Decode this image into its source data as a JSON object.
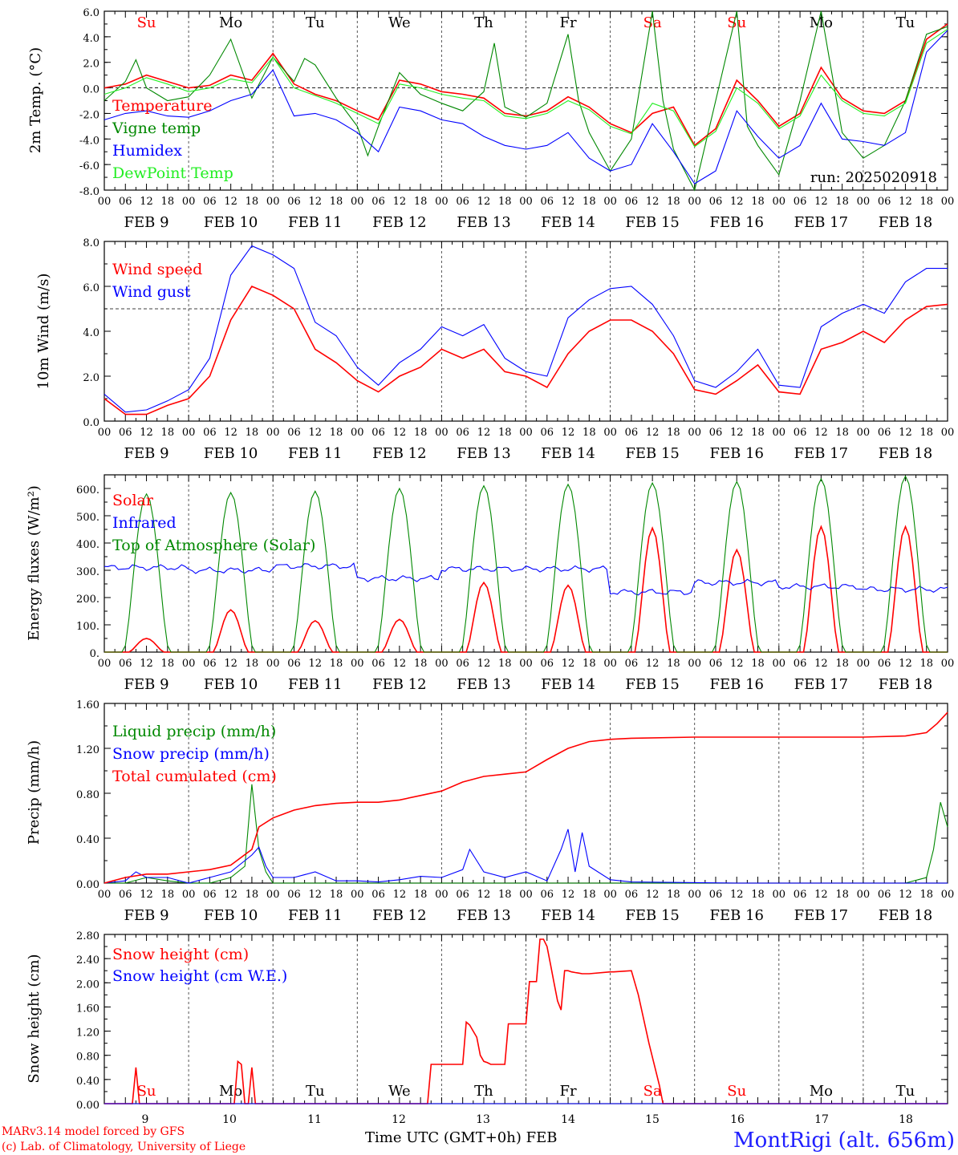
{
  "run": "run: 2025020918",
  "dates": [
    "FEB  9",
    "FEB 10",
    "FEB 11",
    "FEB 12",
    "FEB 13",
    "FEB 14",
    "FEB 15",
    "FEB 16",
    "FEB 17",
    "FEB 18"
  ],
  "hour_ticks": [
    "00",
    "06",
    "12",
    "18"
  ],
  "days": [
    {
      "label": "Su",
      "color": "#ff0000"
    },
    {
      "label": "Mo",
      "color": "#000000"
    },
    {
      "label": "Tu",
      "color": "#000000"
    },
    {
      "label": "We",
      "color": "#000000"
    },
    {
      "label": "Th",
      "color": "#000000"
    },
    {
      "label": "Fr",
      "color": "#000000"
    },
    {
      "label": "Sa",
      "color": "#ff0000"
    },
    {
      "label": "Su",
      "color": "#ff0000"
    },
    {
      "label": "Mo",
      "color": "#000000"
    },
    {
      "label": "Tu",
      "color": "#000000"
    }
  ],
  "day_numbers": [
    "9",
    "10",
    "11",
    "12",
    "13",
    "14",
    "15",
    "16",
    "17",
    "18"
  ],
  "footer": {
    "model": "MARv3.14 model forced by GFS",
    "lab": "(c) Lab. of Climatology, University of Liege",
    "xlabel": "Time UTC (GMT+0h) FEB",
    "station": "MontRigi (alt. 656m)"
  },
  "chart_data": [
    {
      "type": "line",
      "ylabel": "2m Temp. (°C)",
      "ylim": [
        -8,
        6
      ],
      "yticks": [
        "-8.0",
        "-6.0",
        "-4.0",
        "-2.0",
        "0.0",
        "2.0",
        "4.0",
        "6.0"
      ],
      "reference_line": 0,
      "x_unit": "hours since FEB 9 00 UTC",
      "series": [
        {
          "name": "Temperature",
          "color": "#ff0000",
          "x": [
            0,
            6,
            12,
            18,
            24,
            30,
            36,
            42,
            48,
            54,
            60,
            66,
            72,
            78,
            84,
            90,
            96,
            102,
            108,
            114,
            120,
            126,
            132,
            138,
            144,
            150,
            156,
            162,
            168,
            174,
            180,
            186,
            192,
            198,
            204,
            210,
            216,
            222,
            228,
            234,
            240
          ],
          "values": [
            0,
            0.3,
            1,
            0.5,
            0,
            0.2,
            1,
            0.6,
            2.7,
            0.3,
            -0.5,
            -1,
            -1.8,
            -2.5,
            0.6,
            0.3,
            -0.3,
            -0.5,
            -0.8,
            -2,
            -2.2,
            -1.8,
            -0.7,
            -1.5,
            -2.8,
            -3.5,
            -2,
            -1.5,
            -4.5,
            -3.2,
            0.6,
            -1,
            -3,
            -2,
            1.6,
            -0.8,
            -1.8,
            -2,
            -1,
            3.8,
            5
          ]
        },
        {
          "name": "Vigne temp",
          "color": "#008800",
          "x": [
            0,
            6,
            9,
            12,
            18,
            24,
            30,
            36,
            42,
            48,
            54,
            57,
            60,
            66,
            72,
            75,
            78,
            84,
            90,
            96,
            102,
            108,
            111,
            114,
            120,
            126,
            132,
            135,
            138,
            144,
            150,
            156,
            159,
            162,
            168,
            174,
            180,
            183,
            186,
            192,
            198,
            204,
            210,
            216,
            222,
            228,
            234,
            240
          ],
          "values": [
            -1,
            0.5,
            2.2,
            0,
            -1,
            -0.7,
            1,
            3.8,
            -0.8,
            2.4,
            0.5,
            2.3,
            1.8,
            -0.8,
            -3,
            -5.3,
            -3,
            1.2,
            -0.5,
            -1.2,
            -1.8,
            -0.3,
            3.5,
            -1.5,
            -2.3,
            -1.2,
            4.2,
            -1,
            -3.5,
            -6.5,
            -4,
            6.5,
            -1,
            -4.8,
            -8,
            -1,
            6.5,
            -3,
            -4.5,
            -6.8,
            -1,
            6.5,
            -3.5,
            -5.5,
            -4.5,
            -1,
            4.2,
            4.8
          ]
        },
        {
          "name": "Humidex",
          "color": "#0000ff",
          "x": [
            0,
            6,
            12,
            18,
            24,
            30,
            36,
            42,
            48,
            54,
            60,
            66,
            72,
            78,
            84,
            90,
            96,
            102,
            108,
            114,
            120,
            126,
            132,
            138,
            144,
            150,
            156,
            162,
            168,
            174,
            180,
            186,
            192,
            198,
            204,
            210,
            216,
            222,
            228,
            234,
            240
          ],
          "values": [
            -2.5,
            -2,
            -1.8,
            -2.2,
            -2.3,
            -1.8,
            -1,
            -0.5,
            1.4,
            -2.2,
            -2,
            -2.5,
            -3.5,
            -5,
            -1.5,
            -1.8,
            -2.5,
            -2.8,
            -3.8,
            -4.5,
            -4.8,
            -4.5,
            -3.5,
            -5.5,
            -6.5,
            -6,
            -2.8,
            -5,
            -7.5,
            -6.5,
            -1.8,
            -3.8,
            -5.5,
            -4.5,
            -1.2,
            -4,
            -4.2,
            -4.5,
            -3.5,
            2.8,
            4.5
          ]
        },
        {
          "name": "DewPoint Temp",
          "color": "#22ee22",
          "x": [
            0,
            6,
            12,
            18,
            24,
            30,
            36,
            42,
            48,
            54,
            60,
            66,
            72,
            78,
            84,
            90,
            96,
            102,
            108,
            114,
            120,
            126,
            132,
            138,
            144,
            150,
            156,
            162,
            168,
            174,
            180,
            186,
            192,
            198,
            204,
            210,
            216,
            222,
            228,
            234,
            240
          ],
          "values": [
            -0.5,
            0,
            0.8,
            0.3,
            -0.3,
            0,
            0.7,
            0.4,
            2.4,
            0,
            -0.6,
            -1.2,
            -2,
            -2.8,
            0.3,
            0,
            -0.5,
            -0.8,
            -1,
            -2.2,
            -2.4,
            -2,
            -1,
            -1.7,
            -3,
            -3.6,
            -1.2,
            -1.8,
            -4.6,
            -3.4,
            0,
            -1.2,
            -3.2,
            -2.2,
            1,
            -1,
            -2,
            -2.2,
            -1.2,
            3.5,
            4.6
          ]
        }
      ]
    },
    {
      "type": "line",
      "ylabel": "10m Wind (m/s)",
      "ylim": [
        0,
        8
      ],
      "yticks": [
        "0.0",
        "2.0",
        "4.0",
        "6.0",
        "8.0"
      ],
      "reference_line": 5,
      "x_unit": "hours since FEB 9 00 UTC",
      "series": [
        {
          "name": "Wind speed",
          "color": "#ff0000",
          "x": [
            0,
            6,
            12,
            18,
            24,
            30,
            36,
            42,
            48,
            54,
            60,
            66,
            72,
            78,
            84,
            90,
            96,
            102,
            108,
            114,
            120,
            126,
            132,
            138,
            144,
            150,
            156,
            162,
            168,
            174,
            180,
            186,
            192,
            198,
            204,
            210,
            216,
            222,
            228,
            234,
            240
          ],
          "values": [
            1,
            0.3,
            0.3,
            0.7,
            1,
            2,
            4.5,
            6,
            5.6,
            5,
            3.2,
            2.6,
            1.8,
            1.3,
            2,
            2.4,
            3.2,
            2.8,
            3.2,
            2.2,
            2,
            1.5,
            3,
            4,
            4.5,
            4.5,
            4,
            3,
            1.4,
            1.2,
            1.8,
            2.5,
            1.3,
            1.2,
            3.2,
            3.5,
            4,
            3.5,
            4.5,
            5.1,
            5.2
          ]
        },
        {
          "name": "Wind gust",
          "color": "#0000ff",
          "x": [
            0,
            6,
            12,
            18,
            24,
            30,
            36,
            42,
            48,
            54,
            60,
            66,
            72,
            78,
            84,
            90,
            96,
            102,
            108,
            114,
            120,
            126,
            132,
            138,
            144,
            150,
            156,
            162,
            168,
            174,
            180,
            186,
            192,
            198,
            204,
            210,
            216,
            222,
            228,
            234,
            240
          ],
          "values": [
            1.2,
            0.4,
            0.5,
            0.9,
            1.4,
            2.8,
            6.5,
            7.8,
            7.4,
            6.8,
            4.4,
            3.8,
            2.4,
            1.6,
            2.6,
            3.2,
            4.2,
            3.8,
            4.3,
            2.8,
            2.2,
            2,
            4.6,
            5.4,
            5.9,
            6,
            5.2,
            3.8,
            1.8,
            1.5,
            2.2,
            3.2,
            1.6,
            1.5,
            4.2,
            4.8,
            5.2,
            4.8,
            6.2,
            6.8,
            6.8
          ]
        }
      ]
    },
    {
      "type": "line",
      "ylabel": "Energy fluxes (W/m²)",
      "ylim": [
        0,
        650
      ],
      "yticks": [
        "0.",
        "100.",
        "200.",
        "300.",
        "400.",
        "500.",
        "600."
      ],
      "x_unit": "hours since FEB 9 00 UTC",
      "solar_peaks": [
        50,
        155,
        115,
        120,
        255,
        245,
        455,
        375,
        460,
        460
      ],
      "toa_peaks": [
        580,
        585,
        590,
        600,
        610,
        615,
        620,
        625,
        635,
        645
      ],
      "infrared_base": [
        310,
        300,
        315,
        270,
        305,
        305,
        220,
        255,
        240,
        230
      ],
      "series": [
        {
          "name": "Solar",
          "color": "#ff0000"
        },
        {
          "name": "Infrared",
          "color": "#0000ff"
        },
        {
          "name": "Top of Atmosphere (Solar)",
          "color": "#008800"
        }
      ]
    },
    {
      "type": "line",
      "ylabel": "Precip (mm/h)",
      "ylim": [
        0,
        1.6
      ],
      "yticks": [
        "0.00",
        "0.40",
        "0.80",
        "1.20",
        "1.60"
      ],
      "x_unit": "hours since FEB 9 00 UTC",
      "series": [
        {
          "name": "Liquid precip (mm/h)",
          "color": "#008800",
          "x": [
            0,
            6,
            12,
            18,
            24,
            30,
            36,
            40,
            42,
            44,
            46,
            48,
            54,
            60,
            216,
            228,
            234,
            236,
            238,
            240
          ],
          "values": [
            0,
            0,
            0.05,
            0.02,
            0,
            0,
            0.05,
            0.15,
            0.88,
            0.3,
            0.1,
            0,
            0,
            0,
            0,
            0,
            0.05,
            0.3,
            0.72,
            0.5
          ]
        },
        {
          "name": "Snow precip (mm/h)",
          "color": "#0000ff",
          "x": [
            0,
            6,
            9,
            12,
            18,
            24,
            30,
            36,
            42,
            44,
            46,
            48,
            54,
            60,
            66,
            72,
            78,
            84,
            90,
            96,
            102,
            104,
            106,
            108,
            114,
            120,
            126,
            130,
            132,
            134,
            136,
            138,
            144,
            150,
            180,
            216,
            240
          ],
          "values": [
            0,
            0.02,
            0.1,
            0.05,
            0.05,
            0,
            0.05,
            0.1,
            0.25,
            0.32,
            0.15,
            0.05,
            0.05,
            0.1,
            0.02,
            0.02,
            0.01,
            0.03,
            0.06,
            0.05,
            0.12,
            0.3,
            0.2,
            0.1,
            0.05,
            0.1,
            0.02,
            0.3,
            0.48,
            0.1,
            0.45,
            0.15,
            0.03,
            0.01,
            0,
            0,
            0
          ]
        },
        {
          "name": "Total cumulated (cm)",
          "color": "#ff0000",
          "x": [
            0,
            6,
            12,
            18,
            24,
            30,
            36,
            42,
            44,
            48,
            54,
            60,
            66,
            72,
            78,
            84,
            90,
            96,
            102,
            108,
            114,
            120,
            126,
            132,
            138,
            144,
            150,
            168,
            192,
            216,
            228,
            234,
            237,
            240
          ],
          "values": [
            0,
            0.05,
            0.08,
            0.08,
            0.1,
            0.12,
            0.16,
            0.3,
            0.5,
            0.58,
            0.65,
            0.69,
            0.71,
            0.72,
            0.72,
            0.74,
            0.78,
            0.82,
            0.9,
            0.95,
            0.97,
            0.99,
            1.1,
            1.2,
            1.26,
            1.28,
            1.29,
            1.3,
            1.3,
            1.3,
            1.31,
            1.34,
            1.42,
            1.52
          ]
        }
      ]
    },
    {
      "type": "line",
      "ylabel": "Snow height (cm)",
      "ylim": [
        0,
        2.8
      ],
      "yticks": [
        "0.00",
        "0.40",
        "0.80",
        "1.20",
        "1.60",
        "2.00",
        "2.40",
        "2.80"
      ],
      "x_unit": "hours since FEB 9 00 UTC",
      "series": [
        {
          "name": "Snow height (cm)",
          "color": "#ff0000",
          "x": [
            0,
            8,
            9,
            10,
            36,
            37,
            38,
            39,
            40,
            41,
            42,
            43,
            44,
            92,
            93,
            94,
            102,
            103,
            104,
            105,
            106,
            107,
            108,
            109,
            110,
            114,
            115,
            116,
            120,
            121,
            122,
            123,
            124,
            125,
            126,
            127,
            128,
            129,
            130,
            131,
            132,
            133,
            134,
            135,
            136,
            137,
            138,
            144,
            145,
            150,
            152,
            155,
            158,
            159,
            240
          ],
          "values": [
            0,
            0,
            0.6,
            0,
            0,
            0,
            0.7,
            0.65,
            0,
            0,
            0.6,
            0,
            0,
            0,
            0.65,
            0.65,
            0.65,
            1.35,
            1.3,
            1.2,
            1.1,
            0.8,
            0.7,
            0.68,
            0.65,
            0.65,
            1.32,
            1.32,
            1.32,
            2.02,
            2.02,
            2.02,
            2.72,
            2.72,
            2.6,
            2.3,
            2.0,
            1.7,
            1.55,
            2.2,
            2.2,
            2.18,
            2.17,
            2.16,
            2.15,
            2.15,
            2.15,
            2.18,
            2.18,
            2.2,
            1.8,
            1.0,
            0.3,
            0,
            0
          ]
        },
        {
          "name": "Snow height (cm W.E.)",
          "color": "#0000ff",
          "x": [
            0,
            240
          ],
          "values": [
            0,
            0
          ]
        }
      ]
    }
  ]
}
